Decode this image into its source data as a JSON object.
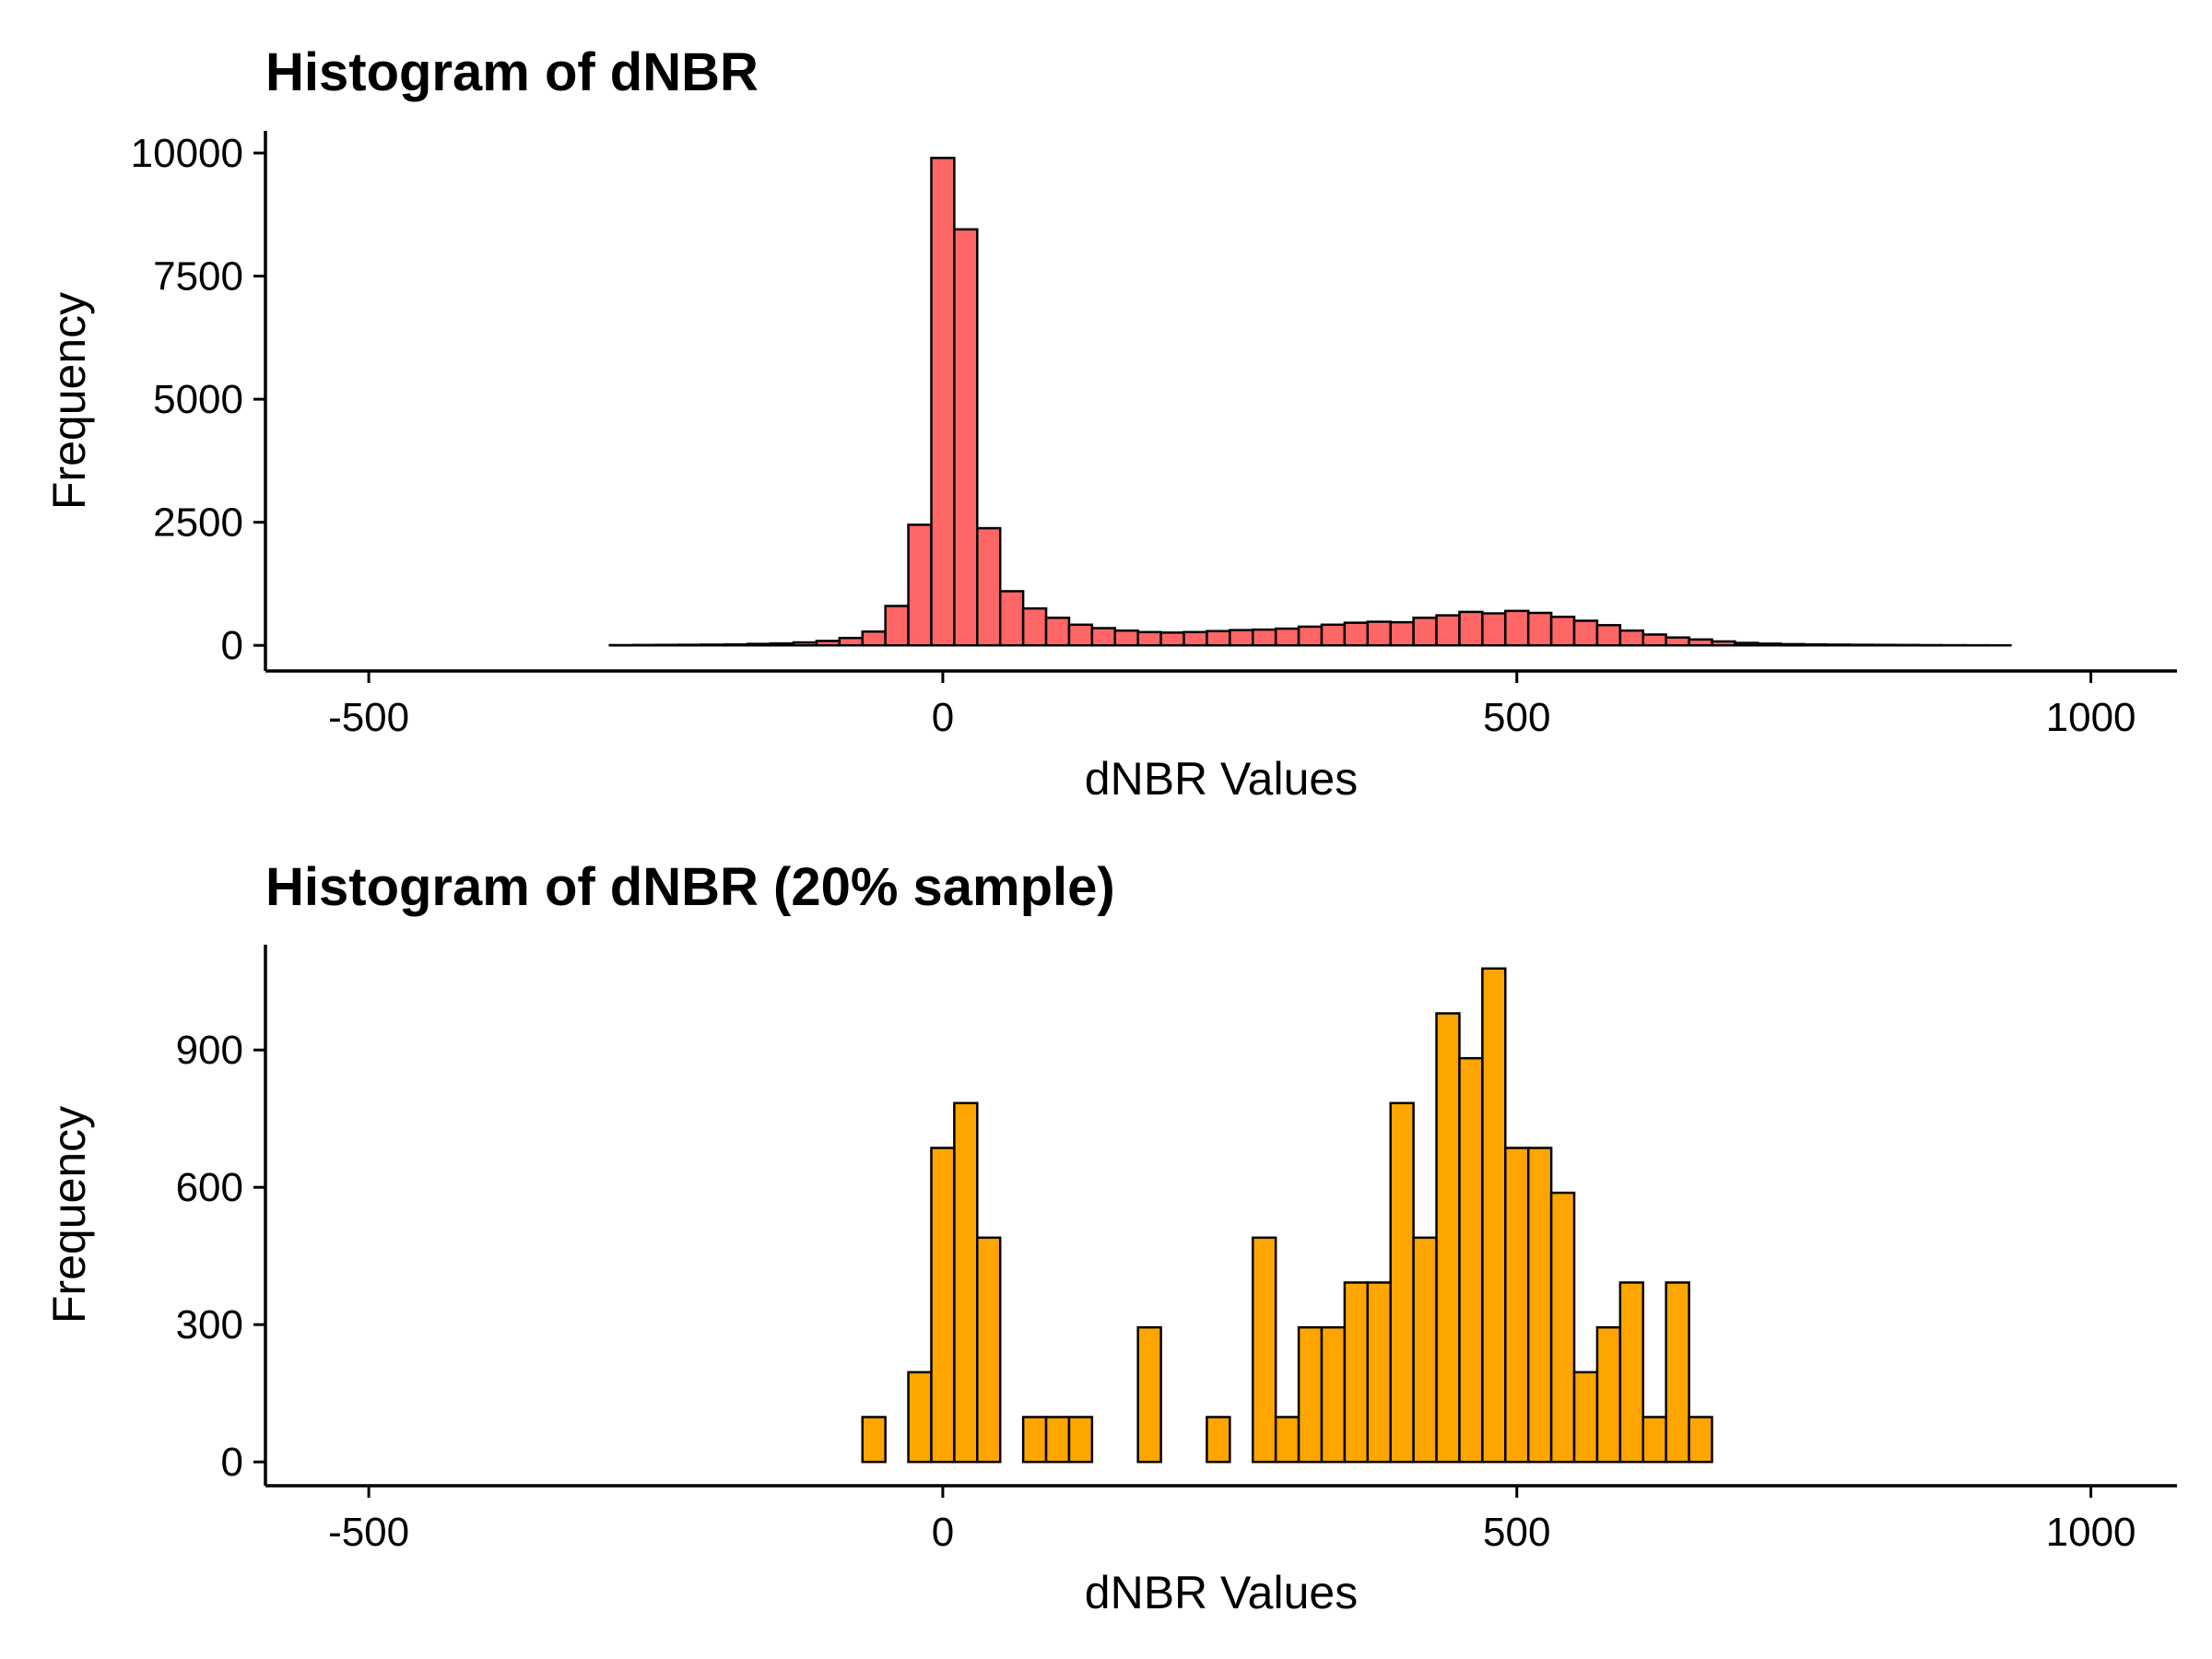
{
  "chart_data": [
    {
      "type": "bar",
      "title": "Histogram of dNBR",
      "xlabel": "dNBR Values",
      "ylabel": "Frequency",
      "xlim": [
        -590,
        1075
      ],
      "ylim": [
        -520,
        10450
      ],
      "xticks": [
        -500,
        0,
        500,
        1000
      ],
      "yticks": [
        0,
        2500,
        5000,
        7500,
        10000
      ],
      "bin_width": 20,
      "grid": false,
      "legend": "none",
      "fill_color": "#ff6666",
      "edge_color": "#000000",
      "bins": [
        {
          "x": -480,
          "y": 0
        },
        {
          "x": -460,
          "y": 0
        },
        {
          "x": -440,
          "y": 0
        },
        {
          "x": -420,
          "y": 0
        },
        {
          "x": -400,
          "y": 0
        },
        {
          "x": -380,
          "y": 0
        },
        {
          "x": -360,
          "y": 0
        },
        {
          "x": -340,
          "y": 0
        },
        {
          "x": -320,
          "y": 0
        },
        {
          "x": -300,
          "y": 0
        },
        {
          "x": -280,
          "y": 5
        },
        {
          "x": -260,
          "y": 8
        },
        {
          "x": -240,
          "y": 10
        },
        {
          "x": -220,
          "y": 12
        },
        {
          "x": -200,
          "y": 15
        },
        {
          "x": -180,
          "y": 20
        },
        {
          "x": -160,
          "y": 30
        },
        {
          "x": -140,
          "y": 40
        },
        {
          "x": -120,
          "y": 60
        },
        {
          "x": -100,
          "y": 90
        },
        {
          "x": -80,
          "y": 150
        },
        {
          "x": -60,
          "y": 280
        },
        {
          "x": -40,
          "y": 800
        },
        {
          "x": -20,
          "y": 2450
        },
        {
          "x": 0,
          "y": 9900
        },
        {
          "x": 20,
          "y": 8450
        },
        {
          "x": 40,
          "y": 2380
        },
        {
          "x": 60,
          "y": 1100
        },
        {
          "x": 80,
          "y": 750
        },
        {
          "x": 100,
          "y": 560
        },
        {
          "x": 120,
          "y": 420
        },
        {
          "x": 140,
          "y": 350
        },
        {
          "x": 160,
          "y": 300
        },
        {
          "x": 180,
          "y": 270
        },
        {
          "x": 200,
          "y": 260
        },
        {
          "x": 220,
          "y": 270
        },
        {
          "x": 240,
          "y": 290
        },
        {
          "x": 260,
          "y": 310
        },
        {
          "x": 280,
          "y": 320
        },
        {
          "x": 300,
          "y": 340
        },
        {
          "x": 320,
          "y": 380
        },
        {
          "x": 340,
          "y": 420
        },
        {
          "x": 360,
          "y": 460
        },
        {
          "x": 380,
          "y": 480
        },
        {
          "x": 400,
          "y": 470
        },
        {
          "x": 420,
          "y": 560
        },
        {
          "x": 440,
          "y": 610
        },
        {
          "x": 460,
          "y": 680
        },
        {
          "x": 480,
          "y": 650
        },
        {
          "x": 500,
          "y": 700
        },
        {
          "x": 520,
          "y": 660
        },
        {
          "x": 540,
          "y": 580
        },
        {
          "x": 560,
          "y": 500
        },
        {
          "x": 580,
          "y": 410
        },
        {
          "x": 600,
          "y": 300
        },
        {
          "x": 620,
          "y": 220
        },
        {
          "x": 640,
          "y": 160
        },
        {
          "x": 660,
          "y": 120
        },
        {
          "x": 680,
          "y": 80
        },
        {
          "x": 700,
          "y": 50
        },
        {
          "x": 720,
          "y": 35
        },
        {
          "x": 740,
          "y": 25
        },
        {
          "x": 760,
          "y": 20
        },
        {
          "x": 780,
          "y": 15
        },
        {
          "x": 800,
          "y": 12
        },
        {
          "x": 820,
          "y": 10
        },
        {
          "x": 840,
          "y": 8
        },
        {
          "x": 860,
          "y": 5
        },
        {
          "x": 880,
          "y": 3
        },
        {
          "x": 900,
          "y": 2
        },
        {
          "x": 920,
          "y": 1
        },
        {
          "x": 940,
          "y": 0
        },
        {
          "x": 960,
          "y": 0
        },
        {
          "x": 980,
          "y": 0
        }
      ]
    },
    {
      "type": "bar",
      "title": "Histogram of dNBR (20% sample)",
      "xlabel": "dNBR Values",
      "ylabel": "Frequency",
      "xlim": [
        -590,
        1075
      ],
      "ylim": [
        -52,
        1130
      ],
      "xticks": [
        -500,
        0,
        500,
        1000
      ],
      "yticks": [
        0,
        300,
        600,
        900
      ],
      "bin_width": 20,
      "grid": false,
      "legend": "none",
      "fill_color": "#ffa500",
      "edge_color": "#000000",
      "bins": [
        {
          "x": -480,
          "y": 0
        },
        {
          "x": -460,
          "y": 0
        },
        {
          "x": -440,
          "y": 0
        },
        {
          "x": -420,
          "y": 0
        },
        {
          "x": -400,
          "y": 0
        },
        {
          "x": -380,
          "y": 0
        },
        {
          "x": -360,
          "y": 0
        },
        {
          "x": -340,
          "y": 0
        },
        {
          "x": -320,
          "y": 0
        },
        {
          "x": -300,
          "y": 0
        },
        {
          "x": -280,
          "y": 0
        },
        {
          "x": -260,
          "y": 0
        },
        {
          "x": -240,
          "y": 0
        },
        {
          "x": -220,
          "y": 0
        },
        {
          "x": -200,
          "y": 0
        },
        {
          "x": -180,
          "y": 0
        },
        {
          "x": -160,
          "y": 0
        },
        {
          "x": -140,
          "y": 0
        },
        {
          "x": -120,
          "y": 0
        },
        {
          "x": -100,
          "y": 0
        },
        {
          "x": -80,
          "y": 0
        },
        {
          "x": -60,
          "y": 98
        },
        {
          "x": -40,
          "y": 0
        },
        {
          "x": -20,
          "y": 196
        },
        {
          "x": 0,
          "y": 686
        },
        {
          "x": 20,
          "y": 784
        },
        {
          "x": 40,
          "y": 490
        },
        {
          "x": 60,
          "y": 0
        },
        {
          "x": 80,
          "y": 98
        },
        {
          "x": 100,
          "y": 98
        },
        {
          "x": 120,
          "y": 98
        },
        {
          "x": 140,
          "y": 0
        },
        {
          "x": 160,
          "y": 0
        },
        {
          "x": 180,
          "y": 294
        },
        {
          "x": 200,
          "y": 0
        },
        {
          "x": 220,
          "y": 0
        },
        {
          "x": 240,
          "y": 98
        },
        {
          "x": 260,
          "y": 0
        },
        {
          "x": 280,
          "y": 490
        },
        {
          "x": 300,
          "y": 98
        },
        {
          "x": 320,
          "y": 294
        },
        {
          "x": 340,
          "y": 294
        },
        {
          "x": 360,
          "y": 392
        },
        {
          "x": 380,
          "y": 392
        },
        {
          "x": 400,
          "y": 784
        },
        {
          "x": 420,
          "y": 490
        },
        {
          "x": 440,
          "y": 980
        },
        {
          "x": 460,
          "y": 882
        },
        {
          "x": 480,
          "y": 1078
        },
        {
          "x": 500,
          "y": 686
        },
        {
          "x": 520,
          "y": 686
        },
        {
          "x": 540,
          "y": 588
        },
        {
          "x": 560,
          "y": 196
        },
        {
          "x": 580,
          "y": 294
        },
        {
          "x": 600,
          "y": 392
        },
        {
          "x": 620,
          "y": 98
        },
        {
          "x": 640,
          "y": 392
        },
        {
          "x": 660,
          "y": 98
        },
        {
          "x": 680,
          "y": 0
        },
        {
          "x": 700,
          "y": 0
        },
        {
          "x": 720,
          "y": 0
        },
        {
          "x": 740,
          "y": 0
        },
        {
          "x": 760,
          "y": 0
        },
        {
          "x": 780,
          "y": 0
        },
        {
          "x": 800,
          "y": 0
        },
        {
          "x": 820,
          "y": 0
        },
        {
          "x": 840,
          "y": 0
        },
        {
          "x": 860,
          "y": 0
        },
        {
          "x": 880,
          "y": 0
        },
        {
          "x": 900,
          "y": 0
        },
        {
          "x": 920,
          "y": 0
        },
        {
          "x": 940,
          "y": 0
        },
        {
          "x": 960,
          "y": 0
        },
        {
          "x": 980,
          "y": 0
        }
      ]
    }
  ]
}
